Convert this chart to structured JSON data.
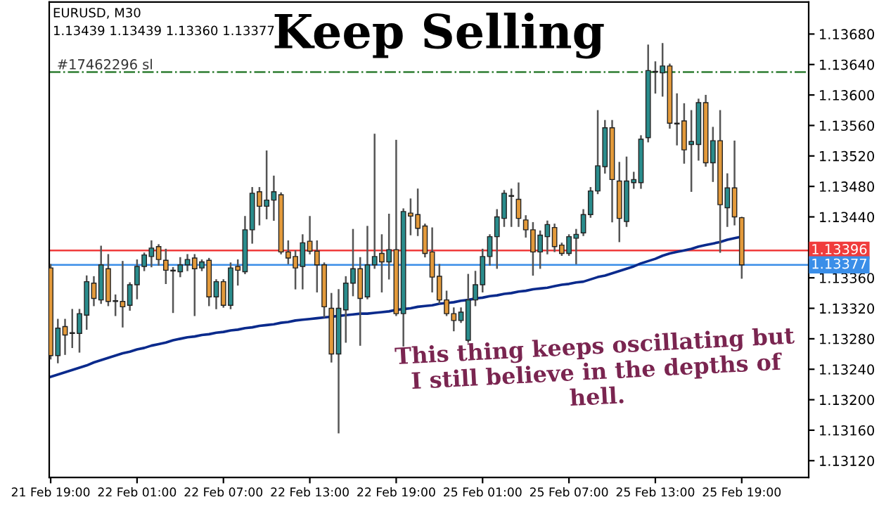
{
  "chart_data": {
    "type": "candlestick",
    "title": "Keep Selling",
    "annotations": [
      "EURUSD, M30",
      "1.13439 1.13439 1.13360 1.13377",
      "This thing keeps oscillating but I still believe in the depths of hell."
    ],
    "categories": [
      "21 Feb 19:00",
      null,
      null,
      null,
      null,
      null,
      null,
      null,
      null,
      null,
      null,
      null,
      "22 Feb 01:00",
      null,
      null,
      null,
      null,
      null,
      null,
      null,
      null,
      null,
      null,
      null,
      "22 Feb 07:00",
      null,
      null,
      null,
      null,
      null,
      null,
      null,
      null,
      null,
      null,
      null,
      "22 Feb 13:00",
      null,
      null,
      null,
      null,
      null,
      null,
      null,
      null,
      null,
      null,
      null,
      "22 Feb 19:00",
      null,
      null,
      null,
      null,
      null,
      null,
      null,
      null,
      null,
      null,
      null,
      "25 Feb 01:00",
      null,
      null,
      null,
      null,
      null,
      null,
      null,
      null,
      null,
      null,
      null,
      "25 Feb 07:00",
      null,
      null,
      null,
      null,
      null,
      null,
      null,
      null,
      null,
      null,
      null,
      "25 Feb 13:00",
      null,
      null,
      null,
      null,
      null,
      null,
      null,
      null,
      null,
      null,
      null,
      "25 Feb 19:00"
    ],
    "ohlc": [
      [
        1.13373,
        1.13377,
        1.13254,
        1.13258
      ],
      [
        1.13258,
        1.13305,
        1.13249,
        1.13294
      ],
      [
        1.13296,
        1.13305,
        1.1326,
        1.13285
      ],
      [
        1.13287,
        1.13318,
        1.13269,
        1.13288
      ],
      [
        1.13287,
        1.13318,
        1.13263,
        1.13313
      ],
      [
        1.13311,
        1.13362,
        1.13293,
        1.13355
      ],
      [
        1.13353,
        1.13361,
        1.13324,
        1.13333
      ],
      [
        1.13331,
        1.13401,
        1.13327,
        1.13377
      ],
      [
        1.13372,
        1.1339,
        1.13324,
        1.13329
      ],
      [
        1.13329,
        1.13337,
        1.13311,
        1.1333
      ],
      [
        1.13329,
        1.13381,
        1.13296,
        1.13322
      ],
      [
        1.13324,
        1.13353,
        1.13318,
        1.13351
      ],
      [
        1.13351,
        1.13383,
        1.13333,
        1.13375
      ],
      [
        1.13375,
        1.13392,
        1.1337,
        1.1339
      ],
      [
        1.13388,
        1.13408,
        1.13375,
        1.13399
      ],
      [
        1.13401,
        1.13403,
        1.13377,
        1.13384
      ],
      [
        1.13383,
        1.13397,
        1.13353,
        1.1337
      ],
      [
        1.1337,
        1.13373,
        1.13315,
        1.13369
      ],
      [
        1.13368,
        1.13386,
        1.13362,
        1.13377
      ],
      [
        1.13377,
        1.1339,
        1.1337,
        1.13384
      ],
      [
        1.13386,
        1.1339,
        1.13311,
        1.13372
      ],
      [
        1.13373,
        1.13383,
        1.1337,
        1.13381
      ],
      [
        1.13383,
        1.13385,
        1.13324,
        1.13335
      ],
      [
        1.13335,
        1.13357,
        1.1332,
        1.13355
      ],
      [
        1.13355,
        1.13357,
        1.13322,
        1.13324
      ],
      [
        1.13324,
        1.13379,
        1.1332,
        1.13373
      ],
      [
        1.13375,
        1.13383,
        1.13351,
        1.1337
      ],
      [
        1.13368,
        1.1344,
        1.13366,
        1.13423
      ],
      [
        1.13423,
        1.13478,
        1.13406,
        1.13471
      ],
      [
        1.13473,
        1.13478,
        1.1343,
        1.13454
      ],
      [
        1.13454,
        1.13526,
        1.13438,
        1.13462
      ],
      [
        1.13462,
        1.13493,
        1.13436,
        1.13473
      ],
      [
        1.13469,
        1.13471,
        1.13392,
        1.13394
      ],
      [
        1.13394,
        1.13408,
        1.13379,
        1.13386
      ],
      [
        1.13388,
        1.13395,
        1.13346,
        1.13373
      ],
      [
        1.13375,
        1.13416,
        1.13346,
        1.13406
      ],
      [
        1.13408,
        1.1344,
        1.13392,
        1.13395
      ],
      [
        1.13395,
        1.13408,
        1.13342,
        1.13377
      ],
      [
        1.13377,
        1.13379,
        1.13309,
        1.13322
      ],
      [
        1.1332,
        1.13339,
        1.1325,
        1.1326
      ],
      [
        1.1326,
        1.13344,
        1.13157,
        1.1332
      ],
      [
        1.13318,
        1.13361,
        1.13276,
        1.13353
      ],
      [
        1.13353,
        1.13423,
        1.13337,
        1.13372
      ],
      [
        1.13372,
        1.13386,
        1.13272,
        1.13333
      ],
      [
        1.13335,
        1.13427,
        1.13333,
        1.13377
      ],
      [
        1.13377,
        1.13548,
        1.13373,
        1.13388
      ],
      [
        1.13392,
        1.13416,
        1.13342,
        1.13381
      ],
      [
        1.13381,
        1.13443,
        1.13359,
        1.13397
      ],
      [
        1.13397,
        1.1354,
        1.13311,
        1.13313
      ],
      [
        1.13313,
        1.1345,
        1.13271,
        1.13447
      ],
      [
        1.13445,
        1.13463,
        1.13417,
        1.13441
      ],
      [
        1.13443,
        1.13476,
        1.13416,
        1.13425
      ],
      [
        1.13428,
        1.1343,
        1.13388,
        1.13392
      ],
      [
        1.13394,
        1.13425,
        1.13342,
        1.13361
      ],
      [
        1.13362,
        1.13377,
        1.13327,
        1.13331
      ],
      [
        1.13331,
        1.13342,
        1.13311,
        1.13313
      ],
      [
        1.13313,
        1.1332,
        1.13291,
        1.13304
      ],
      [
        1.13304,
        1.1332,
        1.13302,
        1.13315
      ],
      [
        1.13278,
        1.13364,
        1.13276,
        1.13331
      ],
      [
        1.13331,
        1.13368,
        1.13324,
        1.13351
      ],
      [
        1.13351,
        1.13397,
        1.13342,
        1.13388
      ],
      [
        1.13388,
        1.13416,
        1.13377,
        1.13414
      ],
      [
        1.13414,
        1.13449,
        1.13373,
        1.1344
      ],
      [
        1.13438,
        1.13474,
        1.13428,
        1.13471
      ],
      [
        1.13467,
        1.13476,
        1.13428,
        1.13468
      ],
      [
        1.13463,
        1.13484,
        1.13428,
        1.13438
      ],
      [
        1.13436,
        1.13441,
        1.13414,
        1.13423
      ],
      [
        1.13423,
        1.13432,
        1.13364,
        1.13394
      ],
      [
        1.13394,
        1.13421,
        1.13373,
        1.13416
      ],
      [
        1.13414,
        1.13434,
        1.13392,
        1.1343
      ],
      [
        1.13426,
        1.1343,
        1.13395,
        1.13401
      ],
      [
        1.13403,
        1.13405,
        1.1339,
        1.13392
      ],
      [
        1.13392,
        1.13416,
        1.1339,
        1.13414
      ],
      [
        1.13412,
        1.13423,
        1.13379,
        1.13417
      ],
      [
        1.13419,
        1.13449,
        1.13416,
        1.13443
      ],
      [
        1.13443,
        1.13478,
        1.1344,
        1.13474
      ],
      [
        1.13474,
        1.13579,
        1.13471,
        1.13507
      ],
      [
        1.13506,
        1.13566,
        1.13498,
        1.13557
      ],
      [
        1.13557,
        1.13566,
        1.13434,
        1.13489
      ],
      [
        1.13487,
        1.13511,
        1.13408,
        1.13438
      ],
      [
        1.13434,
        1.13518,
        1.13428,
        1.13487
      ],
      [
        1.13485,
        1.13498,
        1.13478,
        1.13489
      ],
      [
        1.13485,
        1.13546,
        1.13478,
        1.13542
      ],
      [
        1.13544,
        1.13665,
        1.13539,
        1.13632
      ],
      [
        1.1363,
        1.13643,
        1.13603,
        1.13631
      ],
      [
        1.13629,
        1.13667,
        1.13599,
        1.13638
      ],
      [
        1.13638,
        1.1364,
        1.13557,
        1.13563
      ],
      [
        1.13563,
        1.13601,
        1.13535,
        1.13562
      ],
      [
        1.13566,
        1.13588,
        1.13511,
        1.13528
      ],
      [
        1.13535,
        1.13579,
        1.13474,
        1.13539
      ],
      [
        1.13535,
        1.13594,
        1.13515,
        1.1359
      ],
      [
        1.1359,
        1.13599,
        1.13507,
        1.13511
      ],
      [
        1.13511,
        1.13557,
        1.13487,
        1.1354
      ],
      [
        1.1354,
        1.13579,
        1.13394,
        1.13456
      ],
      [
        1.13452,
        1.13496,
        1.13428,
        1.13478
      ],
      [
        1.13478,
        1.13539,
        1.1343,
        1.1344
      ],
      [
        1.13439,
        1.13439,
        1.1336,
        1.13377
      ]
    ],
    "colors": [
      "#e39a3b",
      "#2a8c8c",
      "#e39a3b",
      "#2a8c8c",
      "#2a8c8c",
      "#2a8c8c",
      "#e39a3b",
      "#2a8c8c",
      "#e39a3b",
      "#2a8c8c",
      "#e39a3b",
      "#2a8c8c",
      "#2a8c8c",
      "#2a8c8c",
      "#2a8c8c",
      "#e39a3b",
      "#e39a3b",
      "#e39a3b",
      "#2a8c8c",
      "#2a8c8c",
      "#e39a3b",
      "#2a8c8c",
      "#e39a3b",
      "#2a8c8c",
      "#e39a3b",
      "#2a8c8c",
      "#e39a3b",
      "#2a8c8c",
      "#2a8c8c",
      "#e39a3b",
      "#2a8c8c",
      "#2a8c8c",
      "#e39a3b",
      "#e39a3b",
      "#e39a3b",
      "#2a8c8c",
      "#e39a3b",
      "#e39a3b",
      "#e39a3b",
      "#e39a3b",
      "#2a8c8c",
      "#2a8c8c",
      "#2a8c8c",
      "#e39a3b",
      "#2a8c8c",
      "#2a8c8c",
      "#e39a3b",
      "#2a8c8c",
      "#e39a3b",
      "#2a8c8c",
      "#e39a3b",
      "#e39a3b",
      "#e39a3b",
      "#e39a3b",
      "#e39a3b",
      "#e39a3b",
      "#e39a3b",
      "#2a8c8c",
      "#2a8c8c",
      "#2a8c8c",
      "#2a8c8c",
      "#2a8c8c",
      "#2a8c8c",
      "#2a8c8c",
      "#2a8c8c",
      "#e39a3b",
      "#e39a3b",
      "#e39a3b",
      "#2a8c8c",
      "#2a8c8c",
      "#e39a3b",
      "#e39a3b",
      "#2a8c8c",
      "#2a8c8c",
      "#2a8c8c",
      "#2a8c8c",
      "#2a8c8c",
      "#2a8c8c",
      "#e39a3b",
      "#e39a3b",
      "#2a8c8c",
      "#2a8c8c",
      "#2a8c8c",
      "#2a8c8c",
      "#2a8c8c",
      "#2a8c8c",
      "#e39a3b",
      "#e39a3b",
      "#e39a3b",
      "#2a8c8c",
      "#2a8c8c",
      "#e39a3b",
      "#2a8c8c",
      "#e39a3b",
      "#2a8c8c",
      "#e39a3b",
      "#e39a3b"
    ],
    "series": [
      {
        "type": "line",
        "color": "#0a2a8c",
        "values": [
          1.1323,
          1.13233,
          1.13236,
          1.13239,
          1.13242,
          1.13245,
          1.13249,
          1.13252,
          1.13255,
          1.13258,
          1.13261,
          1.13263,
          1.13266,
          1.13268,
          1.13271,
          1.13273,
          1.13275,
          1.13278,
          1.1328,
          1.13282,
          1.13283,
          1.13285,
          1.13286,
          1.13288,
          1.13289,
          1.13291,
          1.13292,
          1.13294,
          1.13295,
          1.13297,
          1.13298,
          1.13299,
          1.13301,
          1.13302,
          1.13304,
          1.13305,
          1.13306,
          1.13307,
          1.13308,
          1.13309,
          1.1331,
          1.13311,
          1.13312,
          1.13313,
          1.13313,
          1.13314,
          1.13315,
          1.13316,
          1.13318,
          1.13319,
          1.1332,
          1.13322,
          1.13323,
          1.13324,
          1.13326,
          1.13327,
          1.13328,
          1.1333,
          1.13331,
          1.13333,
          1.13334,
          1.13336,
          1.13337,
          1.13339,
          1.1334,
          1.13342,
          1.13343,
          1.13345,
          1.13346,
          1.13347,
          1.13349,
          1.13351,
          1.13352,
          1.13354,
          1.13355,
          1.13358,
          1.13361,
          1.13363,
          1.13366,
          1.13369,
          1.13372,
          1.13375,
          1.13379,
          1.13382,
          1.13385,
          1.13389,
          1.13392,
          1.13394,
          1.13396,
          1.13398,
          1.13401,
          1.13403,
          1.13405,
          1.13407,
          1.1341,
          1.13412,
          1.13414
        ]
      }
    ],
    "ref_lines": [
      {
        "axis": "y",
        "value": 1.13396,
        "label": "1.13396",
        "color": "#f03c3c",
        "line_style": "solid"
      },
      {
        "axis": "y",
        "value": 1.13377,
        "label": "1.13377",
        "color": "#3a8ee8",
        "line_style": "solid"
      },
      {
        "axis": "y",
        "value": 1.1363,
        "label": "#17462296 sl",
        "color": "#2e7d32",
        "line_style": "dashdot"
      }
    ],
    "ylim": [
      1.13098,
      1.13722
    ],
    "yticks": [
      {
        "value": 1.1312,
        "label": "1.13120"
      },
      {
        "value": 1.1316,
        "label": "1.13160"
      },
      {
        "value": 1.132,
        "label": "1.13200"
      },
      {
        "value": 1.1324,
        "label": "1.13240"
      },
      {
        "value": 1.1328,
        "label": "1.13280"
      },
      {
        "value": 1.1332,
        "label": "1.13320"
      },
      {
        "value": 1.1336,
        "label": "1.13360"
      },
      {
        "value": 1.1344,
        "label": "1.13440"
      },
      {
        "value": 1.1348,
        "label": "1.13480"
      },
      {
        "value": 1.1352,
        "label": "1.13520"
      },
      {
        "value": 1.1356,
        "label": "1.13560"
      },
      {
        "value": 1.136,
        "label": "1.13600"
      },
      {
        "value": 1.1364,
        "label": "1.13640"
      },
      {
        "value": 1.1368,
        "label": "1.13680"
      }
    ],
    "grid": false,
    "legend": false
  }
}
